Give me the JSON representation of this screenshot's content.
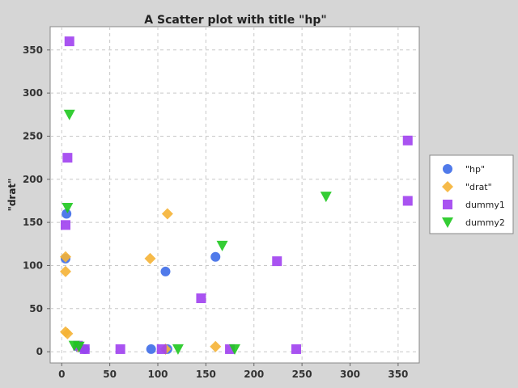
{
  "chart_data": {
    "type": "scatter",
    "title": "A Scatter plot with title \"hp\"",
    "xlabel": "",
    "ylabel": "\"drat\"",
    "xlim": [
      -12,
      372
    ],
    "ylim": [
      -13,
      377
    ],
    "x_ticks": [
      0,
      50,
      100,
      150,
      200,
      250,
      300,
      350
    ],
    "y_ticks": [
      0,
      50,
      100,
      150,
      200,
      250,
      300,
      350
    ],
    "grid": true,
    "legend_position": "right",
    "series": [
      {
        "name": "\"hp\"",
        "color": "#3d6be8",
        "marker": "circle",
        "points": [
          [
            5,
            160
          ],
          [
            4,
            108
          ],
          [
            108,
            93
          ],
          [
            160,
            110
          ],
          [
            93,
            3
          ],
          [
            110,
            3
          ],
          [
            24,
            3
          ],
          [
            18,
            5
          ]
        ]
      },
      {
        "name": "\"drat\"",
        "color": "#f5b335",
        "marker": "diamond",
        "points": [
          [
            4,
            110
          ],
          [
            4,
            93
          ],
          [
            110,
            160
          ],
          [
            92,
            108
          ],
          [
            4,
            23
          ],
          [
            6,
            21
          ],
          [
            160,
            6
          ],
          [
            108,
            3
          ],
          [
            17,
            6
          ]
        ]
      },
      {
        "name": "dummy1",
        "color": "#a040f0",
        "marker": "square",
        "points": [
          [
            8,
            360
          ],
          [
            6,
            225
          ],
          [
            4,
            147
          ],
          [
            360,
            245
          ],
          [
            360,
            175
          ],
          [
            224,
            105
          ],
          [
            145,
            62
          ],
          [
            244,
            3
          ],
          [
            175,
            3
          ],
          [
            104,
            3
          ],
          [
            61,
            3
          ],
          [
            24,
            3
          ],
          [
            17,
            7
          ]
        ]
      },
      {
        "name": "dummy2",
        "color": "#1ec81e",
        "marker": "triangle",
        "points": [
          [
            8,
            275
          ],
          [
            6,
            167
          ],
          [
            167,
            123
          ],
          [
            275,
            180
          ],
          [
            121,
            3
          ],
          [
            180,
            3
          ],
          [
            13,
            7
          ],
          [
            18,
            6
          ]
        ]
      }
    ]
  }
}
